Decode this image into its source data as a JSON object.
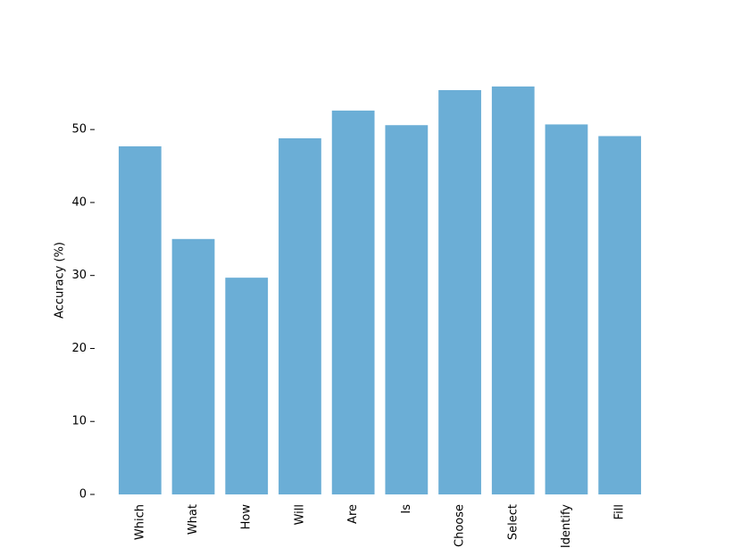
{
  "chart_data": {
    "type": "bar",
    "y_label": "Accuracy (%)",
    "categories": [
      "Which",
      "What",
      "How",
      "Will",
      "Are",
      "Is",
      "Choose",
      "Select",
      "Identify",
      "Fill"
    ],
    "values": [
      47.7,
      35.0,
      29.7,
      48.8,
      52.6,
      50.6,
      55.4,
      55.9,
      50.7,
      49.1
    ],
    "color": "#6baed6",
    "ylim": [
      0,
      58.7
    ],
    "yticks": [
      0,
      10,
      20,
      30,
      40,
      50
    ],
    "grid": false
  }
}
